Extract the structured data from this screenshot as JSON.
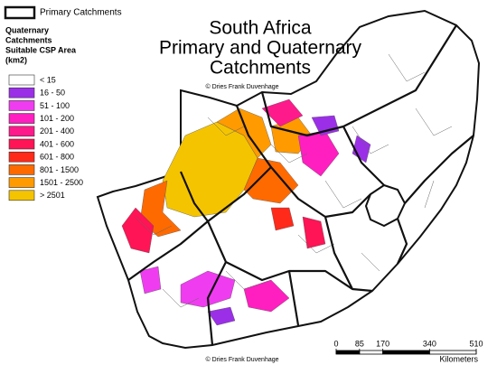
{
  "title": [
    "South Africa",
    "Primary and Quaternary",
    "Catchments"
  ],
  "copyright": "© Dries Frank Duvenhage",
  "primary_legend": "Primary Catchments",
  "legend": {
    "title": [
      "Quaternary",
      "Catchments",
      "Suitable CSP Area",
      "(km2)"
    ],
    "items": [
      {
        "label": "< 15",
        "color": "#ffffff"
      },
      {
        "label": "16 - 50",
        "color": "#9b2fe8"
      },
      {
        "label": "51 - 100",
        "color": "#f03cf0"
      },
      {
        "label": "101 - 200",
        "color": "#ff1fc0"
      },
      {
        "label": "201 - 400",
        "color": "#ff1a8c"
      },
      {
        "label": "401 - 600",
        "color": "#ff1455"
      },
      {
        "label": "601 - 800",
        "color": "#ff2a1a"
      },
      {
        "label": "801 - 1500",
        "color": "#ff6a00"
      },
      {
        "label": "1501 - 2500",
        "color": "#ff9a00"
      },
      {
        "label": "> 2501",
        "color": "#f5c400"
      }
    ]
  },
  "scale_bar": {
    "ticks": [
      0,
      85,
      170,
      340,
      510
    ],
    "unit": "Kilometers"
  }
}
